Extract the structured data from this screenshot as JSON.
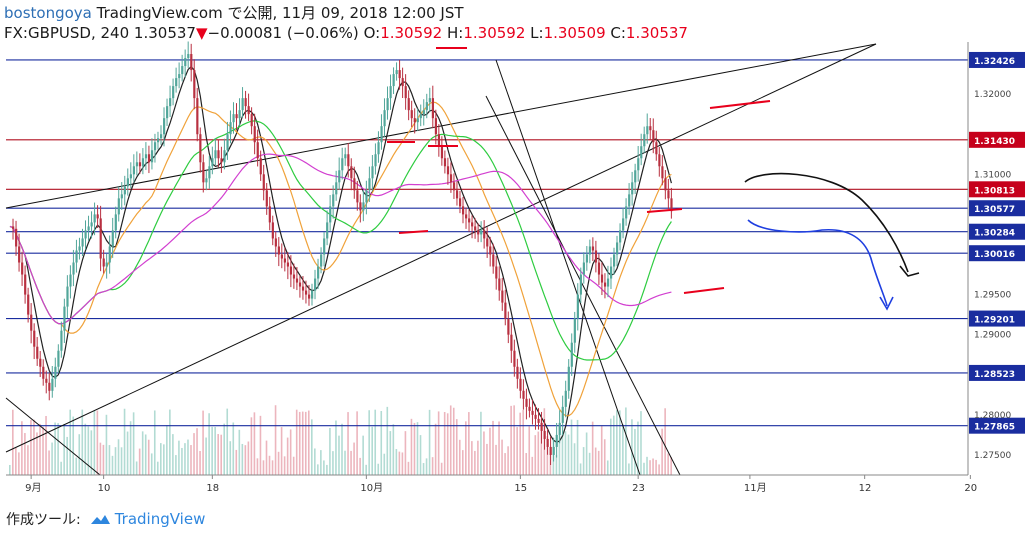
{
  "header": {
    "author": "bostongoya",
    "site_caption": "TradingView.com で公開, 11月 09, 2018 12:00 JST",
    "symbol": "FX:GBPUSD, 240",
    "last": "1.30537",
    "change_arrow": "▼",
    "change": "−0.00081 (−0.06%)",
    "o_label": "O:",
    "o": "1.30592",
    "h_label": "H:",
    "h": "1.30592",
    "l_label": "L:",
    "l": "1.30509",
    "c_label": "C:",
    "c": "1.30537"
  },
  "footer": {
    "tool_label": "作成ツール:",
    "brand": "TradingView",
    "brand_icon": "cloud-logo-icon"
  },
  "colors": {
    "candle_up": "#52a69a",
    "candle_down": "#b83040",
    "hline_blue": "#1a2d9f",
    "hline_red": "#b01020",
    "ma_black": "#222222",
    "ma_orange": "#f0a23a",
    "ma_green": "#2ecc40",
    "ma_magenta": "#d23fd0",
    "drawing_blue": "#1f3fe0",
    "drawing_red": "#e8001c",
    "tag_blue": "#1a2d9f",
    "tag_red": "#c6001b"
  },
  "chart_data": {
    "type": "candlestick",
    "symbol": "GBPUSD",
    "timeframe": "240",
    "ylim": [
      1.2725,
      1.3265
    ],
    "price_ticks": [
      "1.32000",
      "1.31000",
      "1.29500",
      "1.29000",
      "1.28000",
      "1.27500"
    ],
    "time_ticks": [
      {
        "label": "9月",
        "i": 7
      },
      {
        "label": "10",
        "i": 31
      },
      {
        "label": "18",
        "i": 67
      },
      {
        "label": "10月",
        "i": 118
      },
      {
        "label": "15",
        "i": 169
      },
      {
        "label": "23",
        "i": 208
      },
      {
        "label": "11月",
        "i": 245
      },
      {
        "label": "12",
        "i": 283
      },
      {
        "label": "20",
        "i": 318
      }
    ],
    "bars_visible": 279,
    "closes": [
      1.3035,
      1.3032,
      1.301,
      1.299,
      1.2975,
      1.295,
      1.2925,
      1.2905,
      1.2885,
      1.287,
      1.286,
      1.2845,
      1.284,
      1.283,
      1.2845,
      1.286,
      1.288,
      1.2905,
      1.2935,
      1.296,
      1.2975,
      1.299,
      1.3005,
      1.301,
      1.302,
      1.303,
      1.3035,
      1.304,
      1.305,
      1.3045,
      1.2995,
      1.2985,
      1.299,
      1.301,
      1.303,
      1.305,
      1.307,
      1.3075,
      1.3085,
      1.3095,
      1.31,
      1.311,
      1.3115,
      1.311,
      1.312,
      1.3125,
      1.3115,
      1.313,
      1.314,
      1.3145,
      1.315,
      1.317,
      1.3185,
      1.3195,
      1.321,
      1.322,
      1.3225,
      1.3235,
      1.3245,
      1.325,
      1.323,
      1.3195,
      1.315,
      1.3115,
      1.309,
      1.3095,
      1.311,
      1.312,
      1.313,
      1.312,
      1.3115,
      1.313,
      1.315,
      1.3165,
      1.3175,
      1.317,
      1.318,
      1.3195,
      1.3185,
      1.3175,
      1.316,
      1.314,
      1.312,
      1.31,
      1.308,
      1.306,
      1.304,
      1.302,
      1.301,
      1.3,
      1.2995,
      1.299,
      1.2985,
      1.2975,
      1.297,
      1.2965,
      1.296,
      1.2955,
      1.295,
      1.2945,
      1.2955,
      1.297,
      1.2985,
      1.3,
      1.302,
      1.304,
      1.306,
      1.3075,
      1.309,
      1.3105,
      1.312,
      1.3125,
      1.311,
      1.3095,
      1.308,
      1.3065,
      1.3055,
      1.3065,
      1.308,
      1.3095,
      1.311,
      1.3125,
      1.314,
      1.316,
      1.318,
      1.3195,
      1.321,
      1.3225,
      1.323,
      1.322,
      1.321,
      1.3195,
      1.318,
      1.317,
      1.3165,
      1.317,
      1.3175,
      1.318,
      1.319,
      1.3195,
      1.317,
      1.315,
      1.3135,
      1.312,
      1.311,
      1.31,
      1.309,
      1.308,
      1.307,
      1.306,
      1.305,
      1.3045,
      1.304,
      1.3035,
      1.303,
      1.3025,
      1.303,
      1.302,
      1.301,
      1.3,
      1.2985,
      1.297,
      1.2955,
      1.294,
      1.292,
      1.29,
      1.288,
      1.286,
      1.2845,
      1.283,
      1.282,
      1.281,
      1.2805,
      1.28,
      1.2795,
      1.279,
      1.278,
      1.277,
      1.276,
      1.275,
      1.276,
      1.2775,
      1.279,
      1.281,
      1.283,
      1.286,
      1.289,
      1.292,
      1.295,
      1.2975,
      1.299,
      1.3,
      1.301,
      1.3005,
      1.299,
      1.2975,
      1.2965,
      1.296,
      1.297,
      1.2985,
      1.3,
      1.3015,
      1.303,
      1.3045,
      1.306,
      1.3075,
      1.309,
      1.3105,
      1.312,
      1.3135,
      1.315,
      1.316,
      1.3155,
      1.314,
      1.3125,
      1.311,
      1.3095,
      1.308,
      1.307,
      1.3054
    ],
    "horizontal_levels": [
      {
        "price": "1.32426",
        "color": "blue"
      },
      {
        "price": "1.31430",
        "color": "red"
      },
      {
        "price": "1.30813",
        "color": "red"
      },
      {
        "price": "1.30577",
        "color": "blue"
      },
      {
        "price": "1.30284",
        "color": "blue"
      },
      {
        "price": "1.30016",
        "color": "blue"
      },
      {
        "price": "1.29201",
        "color": "blue"
      },
      {
        "price": "1.28523",
        "color": "blue"
      },
      {
        "price": "1.27865",
        "color": "blue"
      }
    ],
    "moving_averages": [
      {
        "color": "black",
        "kind": "short"
      },
      {
        "color": "orange",
        "kind": "mid"
      },
      {
        "color": "green",
        "kind": "long"
      },
      {
        "color": "magenta",
        "kind": "longer"
      }
    ],
    "grid": false,
    "legend": "none"
  }
}
